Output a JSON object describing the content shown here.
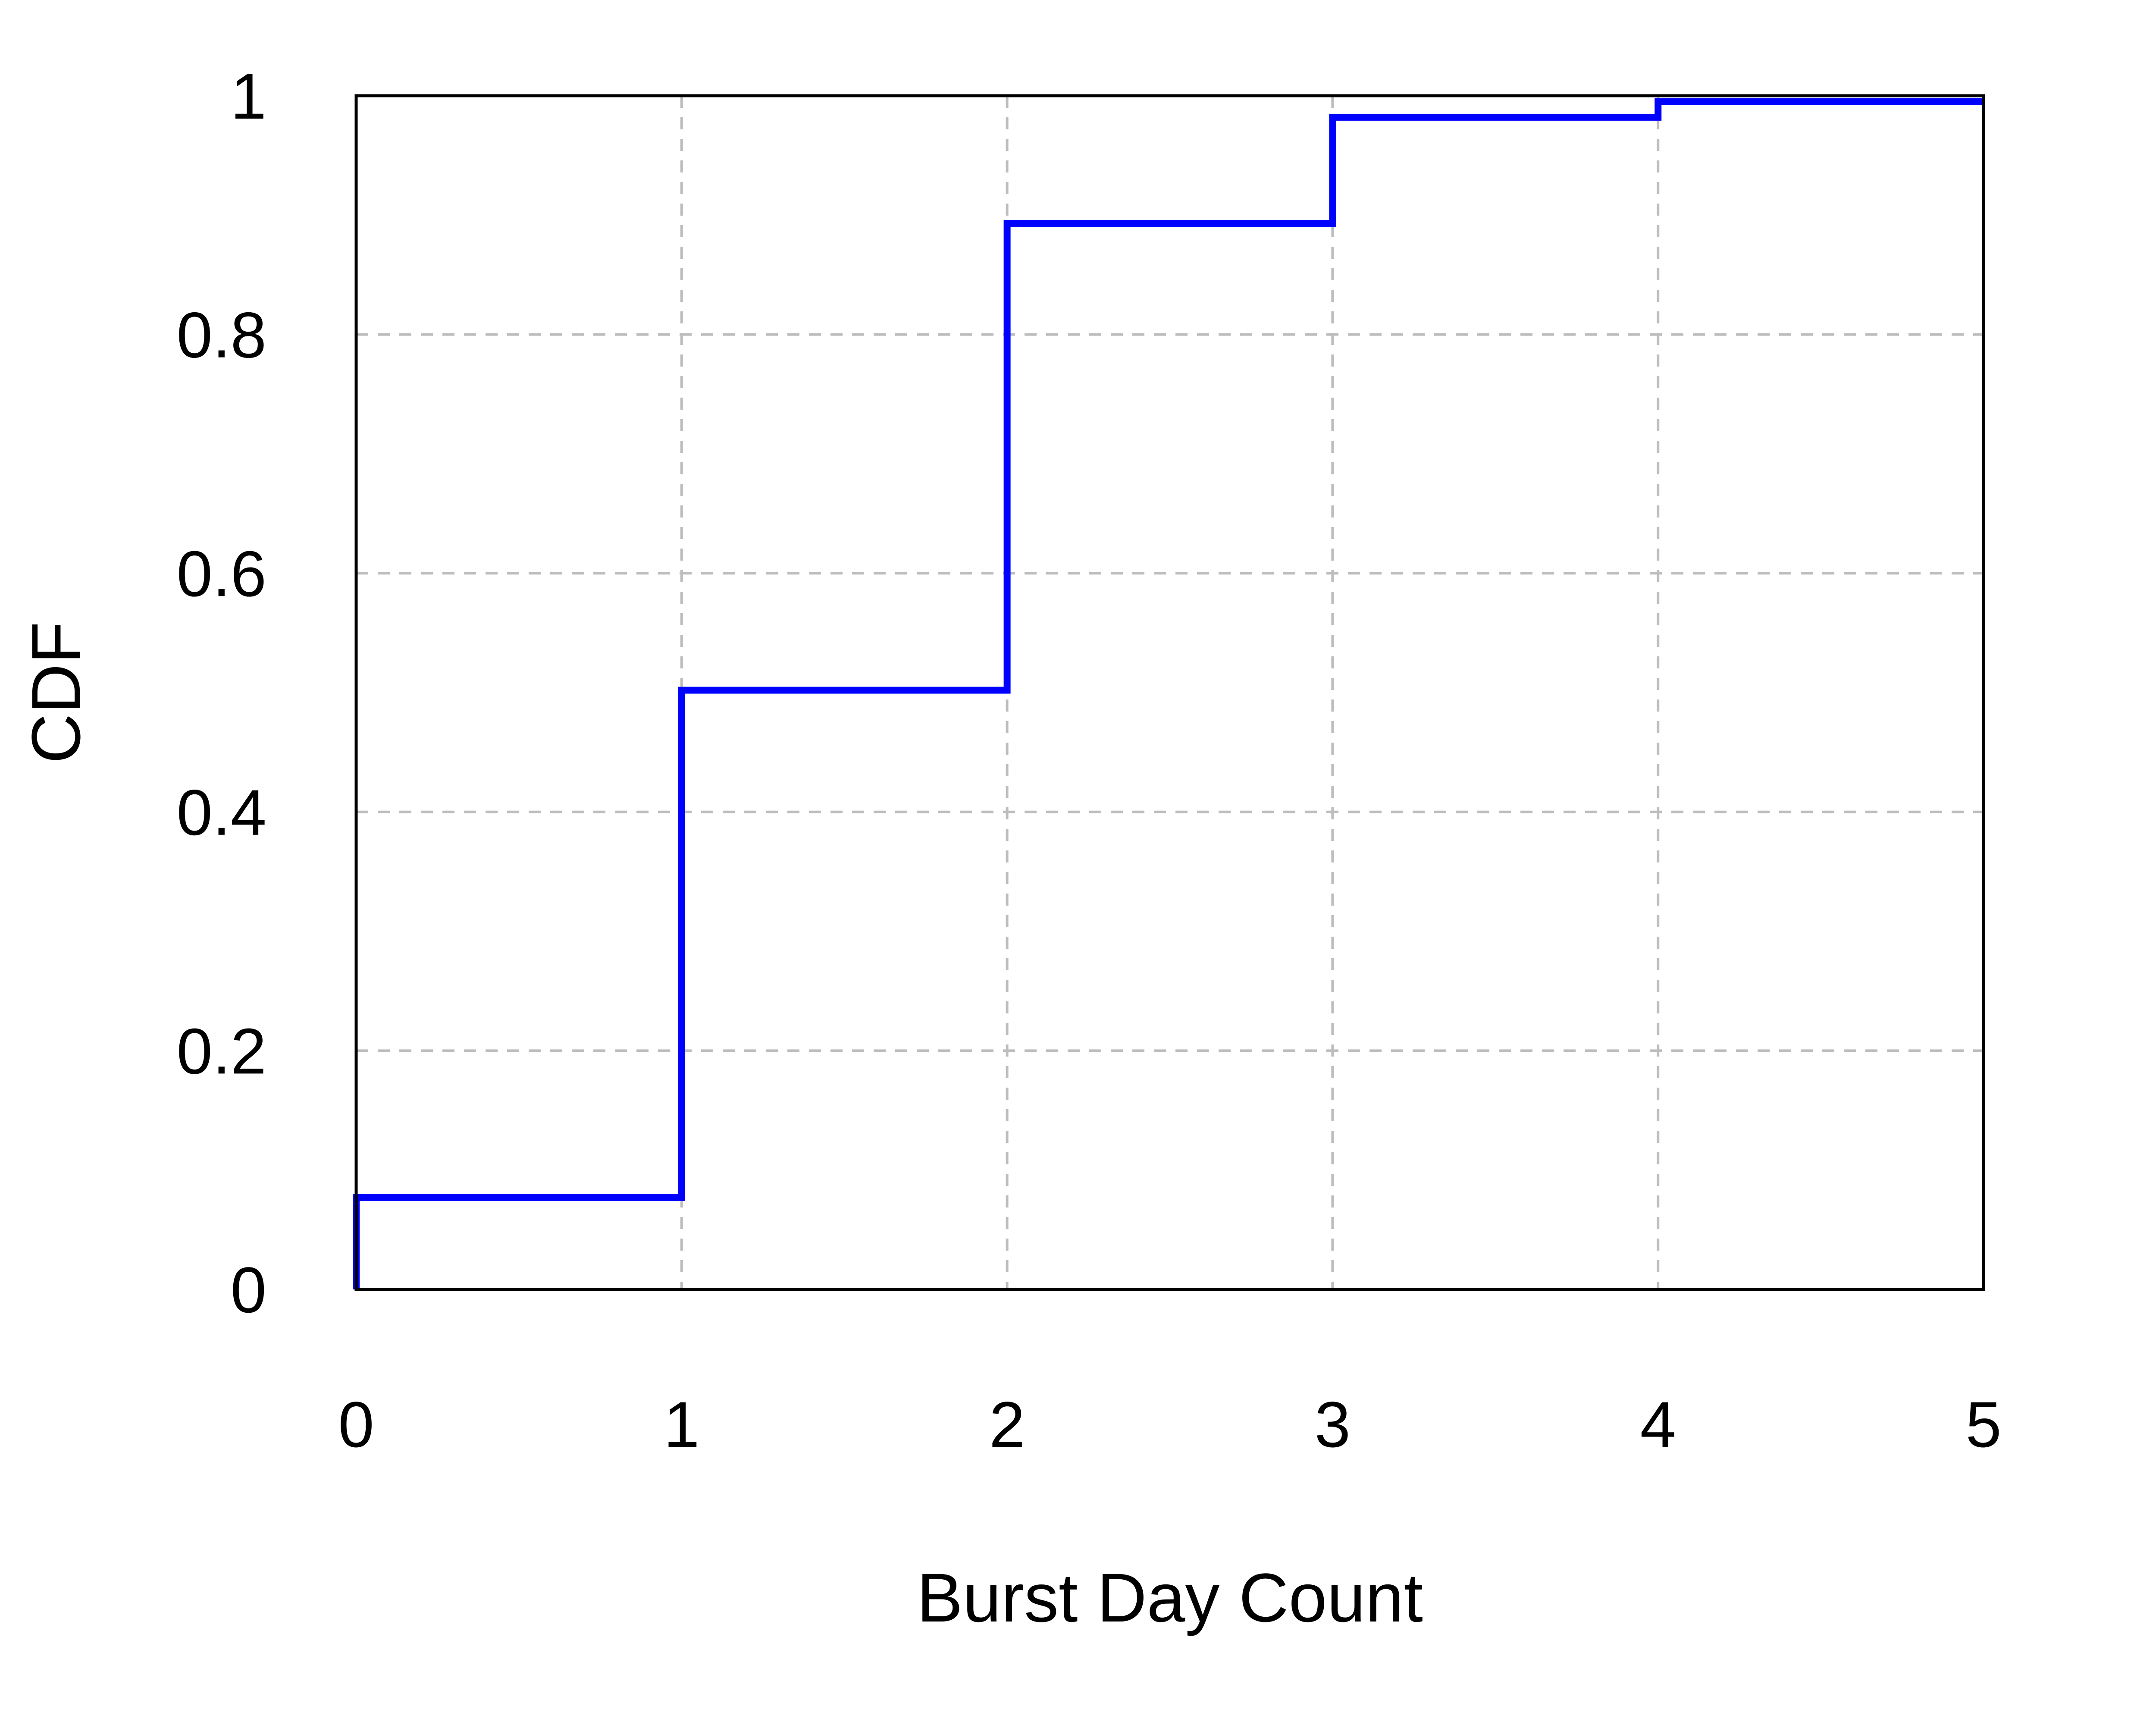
{
  "chart_data": {
    "type": "line",
    "step": true,
    "title": "",
    "xlabel": "Burst Day Count",
    "ylabel": "CDF",
    "xlim": [
      0,
      5
    ],
    "ylim": [
      0,
      1
    ],
    "xticks": [
      "0",
      "1",
      "2",
      "3",
      "4",
      "5"
    ],
    "yticks": [
      "0",
      "0.2",
      "0.4",
      "0.6",
      "0.8",
      "1"
    ],
    "grid": true,
    "grid_style": "dashed",
    "legend": "none",
    "colors": {
      "series": "#0000ff",
      "grid": "#bdbdbd",
      "frame": "#000000"
    },
    "series": [
      {
        "x": [
          0,
          1,
          2,
          3,
          4,
          5
        ],
        "y": [
          0.077,
          0.502,
          0.893,
          0.982,
          0.995,
          0.995
        ]
      }
    ]
  }
}
